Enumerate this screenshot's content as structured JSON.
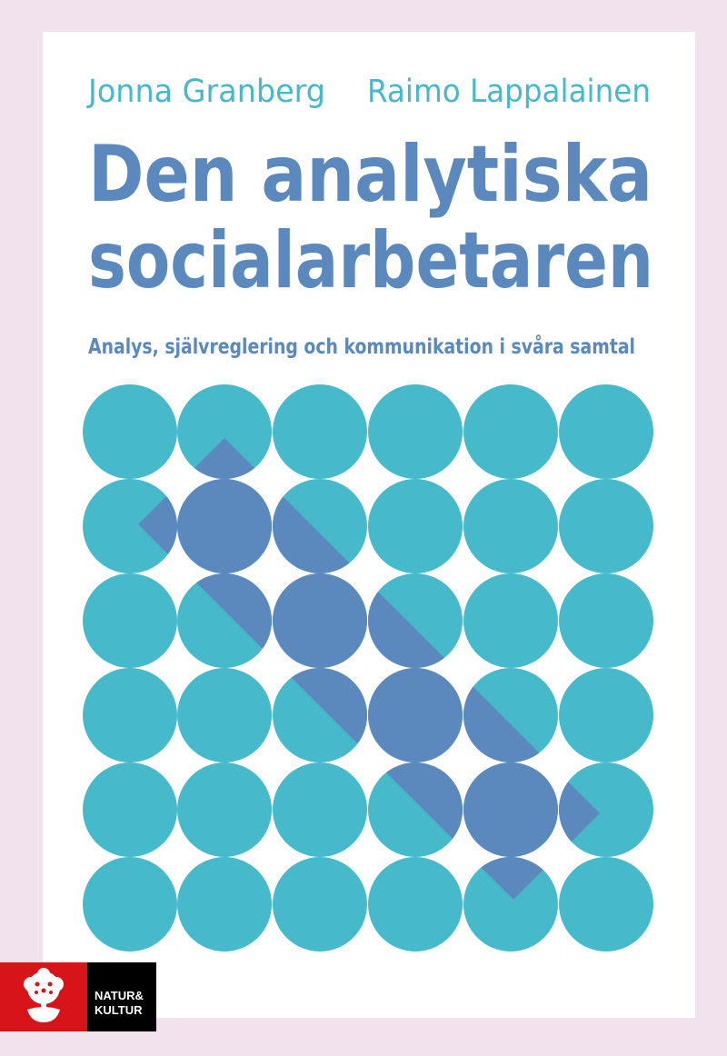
{
  "cover": {
    "authors": [
      "Jonna Granberg",
      "Raimo Lappalainen"
    ],
    "title_lines": [
      "Den analytiska",
      "socialarbetaren"
    ],
    "subtitle": "Analys, självreglering och kommunikation i svåra samtal",
    "pattern": {
      "rows": 6,
      "cols": 6,
      "circle_color": "#46bacb",
      "band_color": "#5b88bd"
    },
    "publisher": {
      "name_line1": "NATUR&",
      "name_line2": "KULTUR",
      "logo_icon": "tree-icon",
      "red": "#d7141a"
    },
    "colors": {
      "background": "#f1e2ee",
      "panel": "#ffffff",
      "author": "#46b8cb",
      "title": "#5b88bd"
    }
  }
}
